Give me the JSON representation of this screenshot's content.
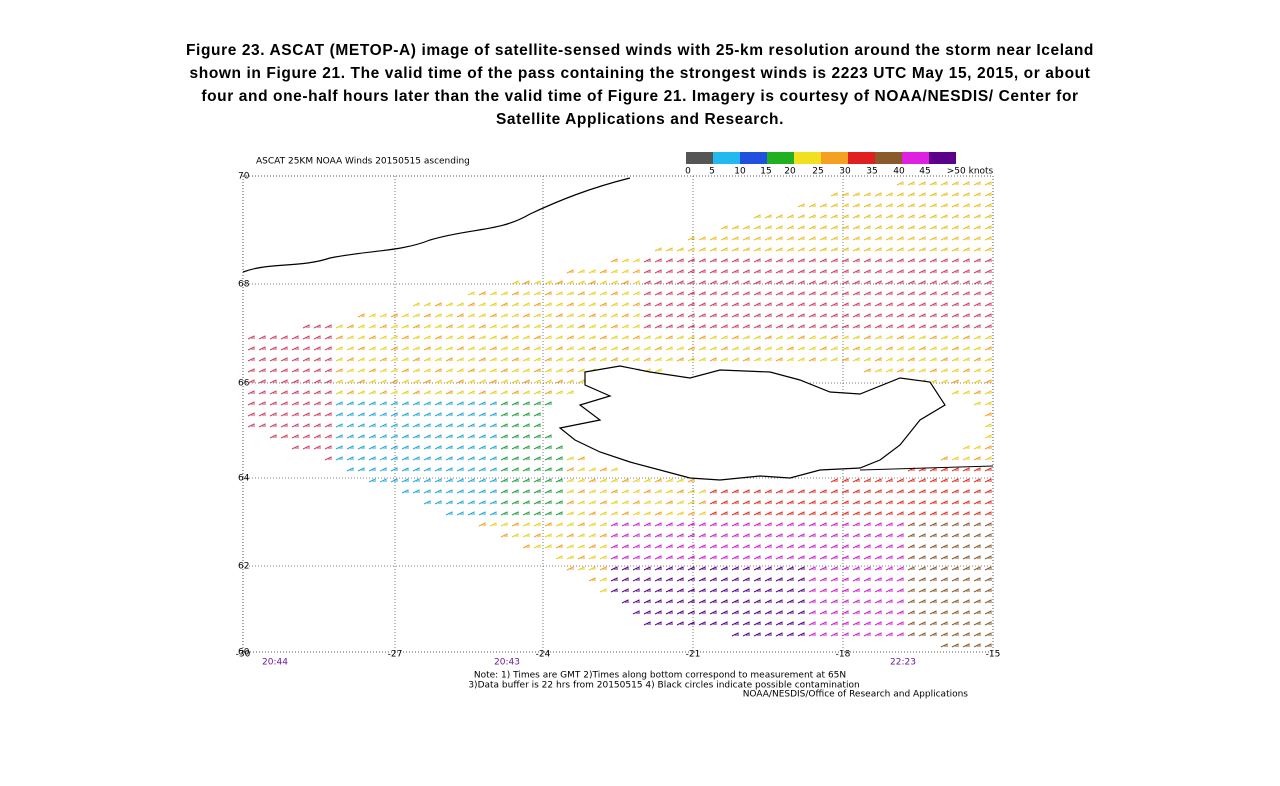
{
  "caption": {
    "lines": [
      "Figure 23.  ASCAT (METOP-A) image of satellite-sensed winds with 25-km resolution around the storm near Iceland",
      "shown in Figure 21.  The valid time of the pass containing the strongest winds is 2223 UTC May 15, 2015, or about",
      "four and one-half hours later than the valid time of Figure 21.  Imagery is courtesy of NOAA/NESDIS/ Center for",
      "Satellite Applications and Research."
    ]
  },
  "map": {
    "title": "ASCAT 25KM NOAA Winds 20150515 ascending",
    "legend": {
      "labels": [
        "0",
        "5",
        "10",
        "15",
        "20",
        "25",
        "30",
        "35",
        "40",
        "45",
        ">50 knots"
      ]
    },
    "lat_labels": [
      "70",
      "68",
      "66",
      "64",
      "62",
      "60"
    ],
    "lon_labels": [
      "-30",
      "-27",
      "-24",
      "-21",
      "-18",
      "-15"
    ],
    "times": [
      "20:44",
      "20:43",
      "22:23"
    ],
    "notes": [
      "Note: 1) Times are GMT 2)Times along bottom correspond to measurement at 65N",
      "3)Data buffer is 22 hrs from 20150515 4) Black circles indicate possible contamination",
      "NOAA/NESDIS/Office of Research and Applications"
    ]
  }
}
